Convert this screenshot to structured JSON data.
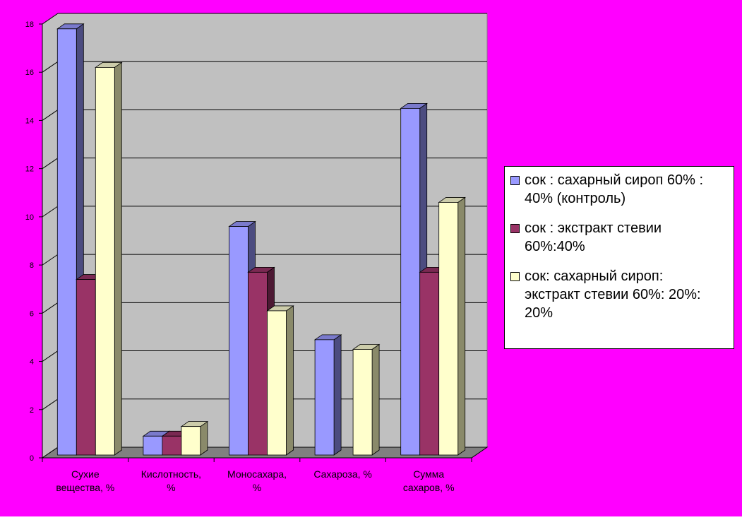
{
  "chart_data": {
    "type": "bar",
    "categories": [
      [
        "Сухие",
        "вещества, %"
      ],
      [
        "Кислотность,",
        "%"
      ],
      [
        "Моносахара,",
        "%"
      ],
      [
        "Сахароза, %"
      ],
      [
        "Сумма",
        "сахаров, %"
      ]
    ],
    "series": [
      {
        "name": "сок : сахарный сироп 60% : 40% (контроль)",
        "name_lines": [
          "сок : сахарный сироп 60% :",
          "40% (контроль)"
        ],
        "values": [
          17.8,
          0.9,
          9.6,
          4.9,
          14.5
        ],
        "color": "#9999ff",
        "side_color": "#4c4c80",
        "top_color": "#7a7acc"
      },
      {
        "name": "сок : экстракт стевии 60%:40%",
        "name_lines": [
          "сок : экстракт стевии",
          "60%:40%"
        ],
        "values": [
          7.4,
          0.9,
          7.7,
          0,
          7.7
        ],
        "color": "#993366",
        "side_color": "#4c1933",
        "top_color": "#7a2952"
      },
      {
        "name": "сок: сахарный сироп: экстракт стевии 60%: 20%: 20%",
        "name_lines": [
          "сок: сахарный сироп:",
          "экстракт стевии 60%: 20%:",
          "20%"
        ],
        "values": [
          16.2,
          1.3,
          6.1,
          4.5,
          10.6
        ],
        "color": "#ffffcc",
        "side_color": "#8a8a6a",
        "top_color": "#ccccaa"
      }
    ],
    "y_ticks": [
      "0",
      "2",
      "4",
      "6",
      "8",
      "10",
      "12",
      "14",
      "16",
      "18"
    ],
    "ylim": [
      0,
      18
    ],
    "grid": true,
    "legend_position": "right",
    "colors": {
      "background": "#ff00ff",
      "plot_wall": "#c0c0c0",
      "floor": "#808080",
      "gridline": "#000000"
    }
  }
}
